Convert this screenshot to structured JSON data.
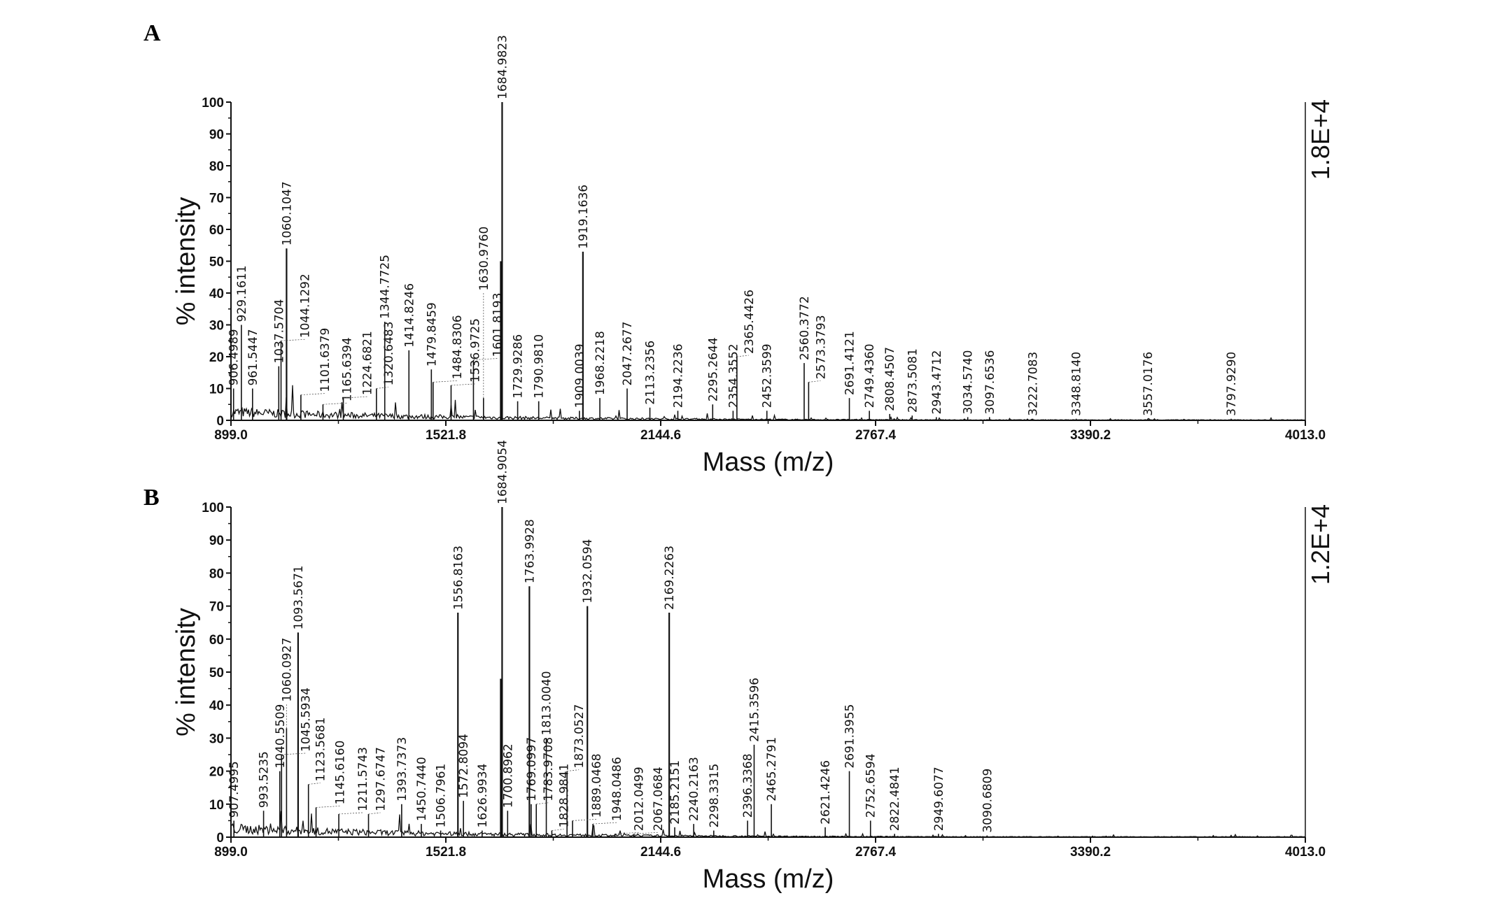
{
  "chart_data": [
    {
      "type": "line",
      "panel_label": "A",
      "xlabel": "Mass (m/z)",
      "ylabel": "% intensity",
      "scale_label": "1.8E+4",
      "xlim": [
        899.0,
        4013.0
      ],
      "ylim": [
        0,
        100
      ],
      "xticks": [
        "899.0",
        "1521.8",
        "2144.6",
        "2767.4",
        "3390.2",
        "4013.0"
      ],
      "yticks": [
        "0",
        "10",
        "20",
        "30",
        "40",
        "50",
        "60",
        "70",
        "80",
        "90",
        "100"
      ],
      "grid": false,
      "color": "#111111",
      "peaks": [
        {
          "mass": 906.4989,
          "intensity": 10,
          "label": "906.4989"
        },
        {
          "mass": 929.1611,
          "intensity": 30,
          "label": "929.1611"
        },
        {
          "mass": 961.5447,
          "intensity": 10,
          "label": "961.5447"
        },
        {
          "mass": 1037.5704,
          "intensity": 17,
          "label": "1037.5704"
        },
        {
          "mass": 1044.1292,
          "intensity": 25,
          "label": "1044.1292"
        },
        {
          "mass": 1060.1047,
          "intensity": 54,
          "label": "1060.1047"
        },
        {
          "mass": 1101.6379,
          "intensity": 8,
          "label": "1101.6379"
        },
        {
          "mass": 1165.6394,
          "intensity": 5,
          "label": "1165.6394"
        },
        {
          "mass": 1224.6821,
          "intensity": 7,
          "label": "1224.6821"
        },
        {
          "mass": 1320.6483,
          "intensity": 10,
          "label": "1320.6483"
        },
        {
          "mass": 1344.7725,
          "intensity": 31,
          "label": "1344.7725"
        },
        {
          "mass": 1414.8246,
          "intensity": 22,
          "label": "1414.8246"
        },
        {
          "mass": 1479.8459,
          "intensity": 16,
          "label": "1479.8459"
        },
        {
          "mass": 1484.8306,
          "intensity": 12,
          "label": "1484.8306"
        },
        {
          "mass": 1536.9725,
          "intensity": 11,
          "label": "1536.9725"
        },
        {
          "mass": 1601.8193,
          "intensity": 19,
          "label": "1601.8193"
        },
        {
          "mass": 1630.976,
          "intensity": 7,
          "label": "1630.9760"
        },
        {
          "mass": 1680.9,
          "intensity": 50,
          "label": ""
        },
        {
          "mass": 1684.9823,
          "intensity": 100,
          "label": "1684.9823"
        },
        {
          "mass": 1729.9286,
          "intensity": 6,
          "label": "1729.9286"
        },
        {
          "mass": 1790.981,
          "intensity": 6,
          "label": "1790.9810"
        },
        {
          "mass": 1909.0039,
          "intensity": 3,
          "label": "1909.0039"
        },
        {
          "mass": 1919.1636,
          "intensity": 53,
          "label": "1919.1636"
        },
        {
          "mass": 1968.2218,
          "intensity": 7,
          "label": "1968.2218"
        },
        {
          "mass": 2047.2677,
          "intensity": 10,
          "label": "2047.2677"
        },
        {
          "mass": 2113.2356,
          "intensity": 4,
          "label": "2113.2356"
        },
        {
          "mass": 2194.2236,
          "intensity": 3,
          "label": "2194.2236"
        },
        {
          "mass": 2295.2644,
          "intensity": 5,
          "label": "2295.2644"
        },
        {
          "mass": 2354.3552,
          "intensity": 3,
          "label": "2354.3552"
        },
        {
          "mass": 2365.4426,
          "intensity": 20,
          "label": "2365.4426"
        },
        {
          "mass": 2452.3599,
          "intensity": 3,
          "label": "2452.3599"
        },
        {
          "mass": 2560.3772,
          "intensity": 18,
          "label": "2560.3772"
        },
        {
          "mass": 2573.3793,
          "intensity": 12,
          "label": "2573.3793"
        },
        {
          "mass": 2691.4121,
          "intensity": 7,
          "label": "2691.4121"
        },
        {
          "mass": 2749.436,
          "intensity": 3,
          "label": "2749.4360"
        },
        {
          "mass": 2808.4507,
          "intensity": 2,
          "label": "2808.4507"
        },
        {
          "mass": 2873.5081,
          "intensity": 1.5,
          "label": "2873.5081"
        },
        {
          "mass": 2943.4712,
          "intensity": 1,
          "label": "2943.4712"
        },
        {
          "mass": 3034.574,
          "intensity": 1,
          "label": "3034.5740"
        },
        {
          "mass": 3097.6536,
          "intensity": 1,
          "label": "3097.6536"
        },
        {
          "mass": 3222.7083,
          "intensity": 0.5,
          "label": "3222.7083"
        },
        {
          "mass": 3348.814,
          "intensity": 0.5,
          "label": "3348.8140"
        },
        {
          "mass": 3557.0176,
          "intensity": 0.5,
          "label": "3557.0176"
        },
        {
          "mass": 3797.929,
          "intensity": 0.5,
          "label": "3797.9290"
        }
      ]
    },
    {
      "type": "line",
      "panel_label": "B",
      "xlabel": "Mass (m/z)",
      "ylabel": "% intensity",
      "scale_label": "1.2E+4",
      "xlim": [
        899.0,
        4013.0
      ],
      "ylim": [
        0,
        100
      ],
      "xticks": [
        "899.0",
        "1521.8",
        "2144.6",
        "2767.4",
        "3390.2",
        "4013.0"
      ],
      "yticks": [
        "0",
        "10",
        "20",
        "30",
        "40",
        "50",
        "60",
        "70",
        "80",
        "90",
        "100"
      ],
      "grid": false,
      "color": "#111111",
      "peaks": [
        {
          "mass": 907.4995,
          "intensity": 5,
          "label": "907.4995"
        },
        {
          "mass": 993.5235,
          "intensity": 8,
          "label": "993.5235"
        },
        {
          "mass": 1040.5509,
          "intensity": 20,
          "label": "1040.5509"
        },
        {
          "mass": 1045.5934,
          "intensity": 25,
          "label": "1045.5934"
        },
        {
          "mass": 1060.0927,
          "intensity": 33,
          "label": "1060.0927"
        },
        {
          "mass": 1093.5671,
          "intensity": 62,
          "label": "1093.5671"
        },
        {
          "mass": 1123.5681,
          "intensity": 16,
          "label": "1123.5681"
        },
        {
          "mass": 1145.616,
          "intensity": 9,
          "label": "1145.6160"
        },
        {
          "mass": 1211.5743,
          "intensity": 7,
          "label": "1211.5743"
        },
        {
          "mass": 1297.6747,
          "intensity": 7,
          "label": "1297.6747"
        },
        {
          "mass": 1393.7373,
          "intensity": 10,
          "label": "1393.7373"
        },
        {
          "mass": 1450.744,
          "intensity": 4,
          "label": "1450.7440"
        },
        {
          "mass": 1506.7961,
          "intensity": 2,
          "label": "1506.7961"
        },
        {
          "mass": 1556.8163,
          "intensity": 68,
          "label": "1556.8163"
        },
        {
          "mass": 1572.8094,
          "intensity": 11,
          "label": "1572.8094"
        },
        {
          "mass": 1626.9934,
          "intensity": 2,
          "label": "1626.9934"
        },
        {
          "mass": 1680.9,
          "intensity": 48,
          "label": ""
        },
        {
          "mass": 1684.9054,
          "intensity": 100,
          "label": "1684.9054"
        },
        {
          "mass": 1700.8962,
          "intensity": 8,
          "label": "1700.8962"
        },
        {
          "mass": 1763.9928,
          "intensity": 76,
          "label": "1763.9928"
        },
        {
          "mass": 1769.0997,
          "intensity": 10,
          "label": "1769.0997"
        },
        {
          "mass": 1783.9708,
          "intensity": 10,
          "label": "1783.9708"
        },
        {
          "mass": 1813.004,
          "intensity": 30,
          "label": "1813.0040"
        },
        {
          "mass": 1828.9841,
          "intensity": 2,
          "label": "1828.9841"
        },
        {
          "mass": 1873.0527,
          "intensity": 20,
          "label": "1873.0527"
        },
        {
          "mass": 1889.0468,
          "intensity": 5,
          "label": "1889.0468"
        },
        {
          "mass": 1932.0594,
          "intensity": 70,
          "label": "1932.0594"
        },
        {
          "mass": 1948.0486,
          "intensity": 4,
          "label": "1948.0486"
        },
        {
          "mass": 2012.0499,
          "intensity": 1,
          "label": "2012.0499"
        },
        {
          "mass": 2067.0684,
          "intensity": 1,
          "label": "2067.0684"
        },
        {
          "mass": 2169.2263,
          "intensity": 68,
          "label": "2169.2263"
        },
        {
          "mass": 2185.2151,
          "intensity": 3,
          "label": "2185.2151"
        },
        {
          "mass": 2240.2163,
          "intensity": 4,
          "label": "2240.2163"
        },
        {
          "mass": 2298.3315,
          "intensity": 2,
          "label": "2298.3315"
        },
        {
          "mass": 2396.3368,
          "intensity": 5,
          "label": "2396.3368"
        },
        {
          "mass": 2415.3596,
          "intensity": 28,
          "label": "2415.3596"
        },
        {
          "mass": 2465.2791,
          "intensity": 10,
          "label": "2465.2791"
        },
        {
          "mass": 2621.4246,
          "intensity": 3,
          "label": "2621.4246"
        },
        {
          "mass": 2691.3955,
          "intensity": 20,
          "label": "2691.3955"
        },
        {
          "mass": 2752.6594,
          "intensity": 5,
          "label": "2752.6594"
        },
        {
          "mass": 2822.4841,
          "intensity": 1,
          "label": "2822.4841"
        },
        {
          "mass": 2949.6077,
          "intensity": 1,
          "label": "2949.6077"
        },
        {
          "mass": 3090.6809,
          "intensity": 0.5,
          "label": "3090.6809"
        }
      ]
    }
  ]
}
